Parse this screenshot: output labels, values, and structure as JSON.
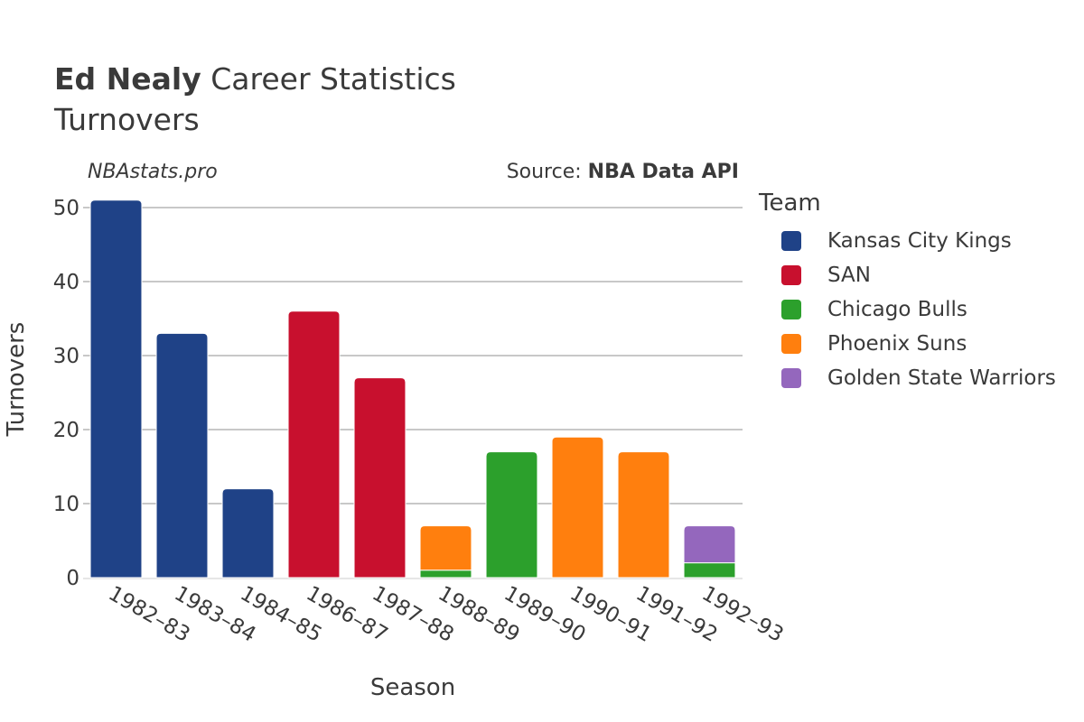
{
  "header": {
    "title_bold": "Ed Nealy",
    "title_rest": " Career Statistics",
    "subtitle": "Turnovers",
    "brand": "NBAstats.pro",
    "source_prefix": "Source: ",
    "source_name": "NBA Data API"
  },
  "legend": {
    "title": "Team",
    "items": [
      {
        "label": "Kansas City Kings",
        "color": "#1f4287"
      },
      {
        "label": "SAN",
        "color": "#c8102e"
      },
      {
        "label": "Chicago Bulls",
        "color": "#2ca02c"
      },
      {
        "label": "Phoenix Suns",
        "color": "#ff7f0e"
      },
      {
        "label": "Golden State Warriors",
        "color": "#9467bd"
      }
    ]
  },
  "chart_data": {
    "type": "bar",
    "stacked": true,
    "categories": [
      "1982–83",
      "1983–84",
      "1984–85",
      "1986–87",
      "1987–88",
      "1988–89",
      "1989–90",
      "1990–91",
      "1991–92",
      "1992–93"
    ],
    "series": [
      {
        "name": "Kansas City Kings",
        "color": "#1f4287",
        "values": [
          51,
          33,
          12,
          0,
          0,
          0,
          0,
          0,
          0,
          0
        ]
      },
      {
        "name": "SAN",
        "color": "#c8102e",
        "values": [
          0,
          0,
          0,
          36,
          27,
          0,
          0,
          0,
          0,
          0
        ]
      },
      {
        "name": "Chicago Bulls",
        "color": "#2ca02c",
        "values": [
          0,
          0,
          0,
          0,
          0,
          1,
          17,
          0,
          0,
          2
        ]
      },
      {
        "name": "Phoenix Suns",
        "color": "#ff7f0e",
        "values": [
          0,
          0,
          0,
          0,
          0,
          6,
          0,
          19,
          17,
          0
        ]
      },
      {
        "name": "Golden State Warriors",
        "color": "#9467bd",
        "values": [
          0,
          0,
          0,
          0,
          0,
          0,
          0,
          0,
          0,
          5
        ]
      }
    ],
    "xlabel": "Season",
    "ylabel": "Turnovers",
    "ylim": [
      0,
      50
    ],
    "yticks": [
      0,
      10,
      20,
      30,
      40,
      50
    ],
    "grid": true,
    "legend_position": "right"
  }
}
